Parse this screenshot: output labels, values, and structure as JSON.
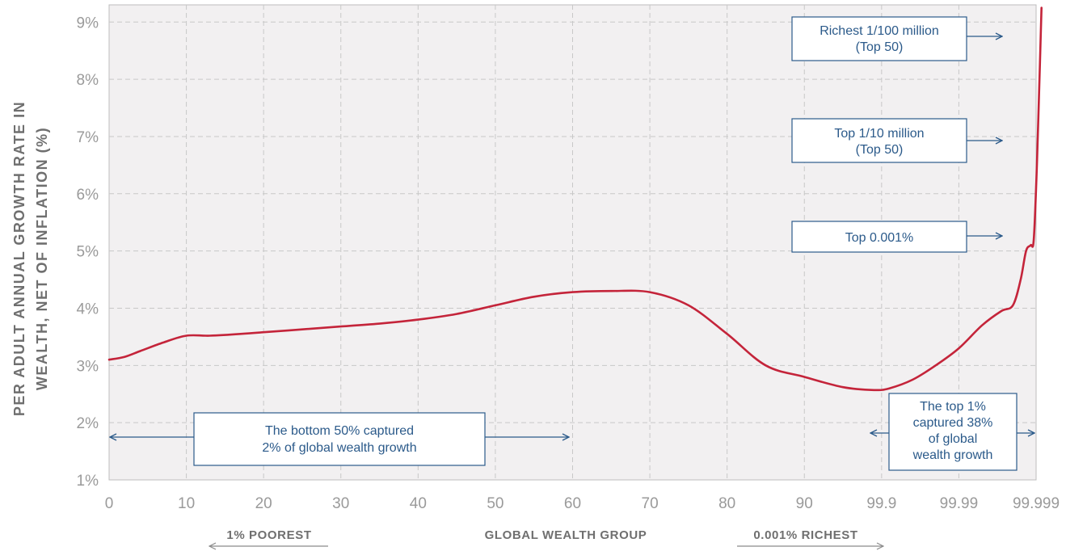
{
  "chart_data": {
    "type": "line",
    "ylabel_lines": [
      "PER ADULT ANNUAL GROWTH RATE IN",
      "WEALTH, NET OF INFLATION (%)"
    ],
    "xlabel": "GLOBAL WEALTH GROUP",
    "x_tick_labels": [
      "0",
      "10",
      "20",
      "30",
      "40",
      "50",
      "60",
      "70",
      "80",
      "90",
      "99.9",
      "99.99",
      "99.999"
    ],
    "y_tick_labels": [
      "1%",
      "2%",
      "3%",
      "4%",
      "5%",
      "6%",
      "7%",
      "8%",
      "9%"
    ],
    "ylim": [
      1,
      9.3
    ],
    "grid": true,
    "series": [
      {
        "color": "#c4243a",
        "points": [
          [
            0,
            3.1
          ],
          [
            2,
            3.15
          ],
          [
            4,
            3.25
          ],
          [
            7,
            3.4
          ],
          [
            10,
            3.52
          ],
          [
            13,
            3.52
          ],
          [
            17,
            3.55
          ],
          [
            20,
            3.58
          ],
          [
            25,
            3.63
          ],
          [
            30,
            3.68
          ],
          [
            35,
            3.73
          ],
          [
            40,
            3.8
          ],
          [
            45,
            3.9
          ],
          [
            50,
            4.05
          ],
          [
            55,
            4.2
          ],
          [
            60,
            4.28
          ],
          [
            65,
            4.3
          ],
          [
            70,
            4.28
          ],
          [
            75,
            4.05
          ],
          [
            80,
            3.55
          ],
          [
            85,
            3.0
          ],
          [
            90,
            2.8
          ],
          [
            95,
            2.62
          ],
          [
            99,
            2.57
          ],
          [
            101,
            2.6
          ],
          [
            104,
            2.75
          ],
          [
            107,
            3.0
          ],
          [
            110,
            3.3
          ],
          [
            113,
            3.7
          ],
          [
            115.5,
            3.95
          ],
          [
            117,
            4.05
          ],
          [
            118,
            4.5
          ],
          [
            118.7,
            5.0
          ],
          [
            119.3,
            5.1
          ],
          [
            119.7,
            5.2
          ],
          [
            120.1,
            6.5
          ],
          [
            120.5,
            8.3
          ],
          [
            120.7,
            9.25
          ]
        ]
      }
    ]
  },
  "footer": {
    "left_label": "1%  POOREST",
    "center_label": "GLOBAL WEALTH GROUP",
    "right_label": "0.001% RICHEST"
  },
  "annotations": {
    "richest_100m": [
      "Richest 1/100 million",
      "(Top 50)"
    ],
    "top_10m": [
      "Top 1/10 million",
      "(Top 50)"
    ],
    "top_0001": [
      "Top 0.001%"
    ],
    "bottom_50": [
      "The bottom 50% captured",
      "2% of global wealth growth"
    ],
    "top_1": [
      "The top 1%",
      "captured 38%",
      "of global",
      "wealth growth"
    ]
  },
  "colors": {
    "line": "#c4243a",
    "annotation": "#2b5a8a",
    "plot_bg": "#f2f0f1",
    "grid": "#c8c8c8"
  }
}
